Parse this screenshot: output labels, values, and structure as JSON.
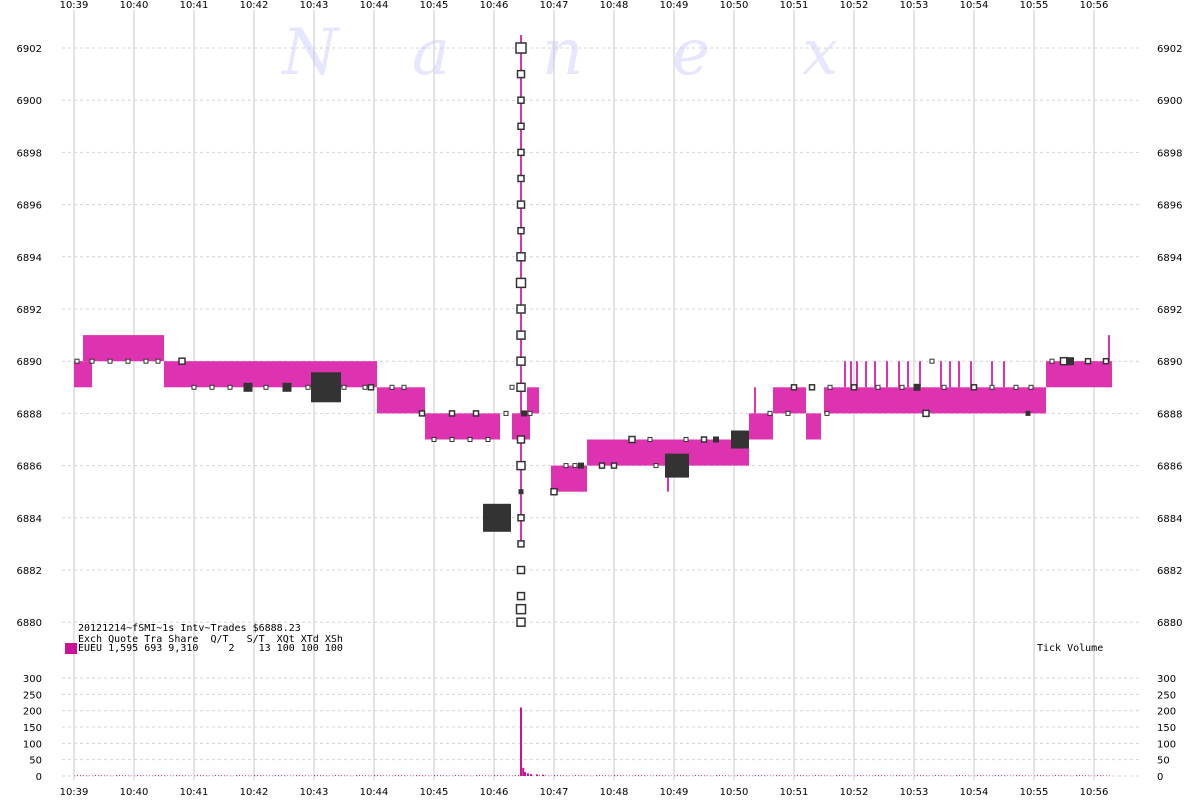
{
  "chart_data": [
    {
      "type": "scatter",
      "title": "20121214~fSMI~1s Intv~Trades $6888.23",
      "watermark": [
        "N",
        "a",
        "n",
        "e",
        "x"
      ],
      "x_tick_labels": [
        "10:39",
        "10:40",
        "10:41",
        "10:42",
        "10:43",
        "10:44",
        "10:45",
        "10:46",
        "10:47",
        "10:48",
        "10:49",
        "10:50",
        "10:51",
        "10:52",
        "10:53",
        "10:54",
        "10:55",
        "10:56"
      ],
      "y_tick_labels": [
        "6880",
        "6882",
        "6884",
        "6886",
        "6888",
        "6890",
        "6892",
        "6894",
        "6896",
        "6898",
        "6900",
        "6902"
      ],
      "ylim": [
        6880,
        6902
      ],
      "grid": true,
      "colors": {
        "quote_band": "#dd33b0",
        "trade_dark": "#333333",
        "trade_outline": "#333333",
        "volume": "#cc1199",
        "grid": "#c8c8c8"
      },
      "quote_bands": [
        {
          "t0": 0.0,
          "t1": 0.3,
          "bid": 6889.0,
          "ask": 6890.0
        },
        {
          "t0": 0.15,
          "t1": 1.5,
          "bid": 6890.0,
          "ask": 6891.0
        },
        {
          "t0": 1.5,
          "t1": 4.6,
          "bid": 6889.0,
          "ask": 6890.0
        },
        {
          "t0": 4.6,
          "t1": 5.05,
          "bid": 6889.0,
          "ask": 6890.0
        },
        {
          "t0": 5.05,
          "t1": 5.85,
          "bid": 6888.0,
          "ask": 6889.0
        },
        {
          "t0": 5.85,
          "t1": 7.1,
          "bid": 6887.0,
          "ask": 6888.0
        },
        {
          "t0": 7.3,
          "t1": 7.6,
          "bid": 6887.0,
          "ask": 6888.0
        },
        {
          "t0": 7.55,
          "t1": 7.75,
          "bid": 6888.0,
          "ask": 6889.0
        },
        {
          "t0": 7.95,
          "t1": 8.55,
          "bid": 6885.0,
          "ask": 6886.0
        },
        {
          "t0": 8.55,
          "t1": 9.2,
          "bid": 6886.0,
          "ask": 6887.0
        },
        {
          "t0": 9.2,
          "t1": 11.25,
          "bid": 6886.0,
          "ask": 6887.0
        },
        {
          "t0": 11.25,
          "t1": 11.65,
          "bid": 6887.0,
          "ask": 6888.0
        },
        {
          "t0": 11.65,
          "t1": 12.2,
          "bid": 6888.0,
          "ask": 6889.0
        },
        {
          "t0": 12.2,
          "t1": 12.45,
          "bid": 6887.0,
          "ask": 6888.0
        },
        {
          "t0": 12.5,
          "t1": 13.5,
          "bid": 6888.0,
          "ask": 6889.0
        },
        {
          "t0": 13.5,
          "t1": 14.85,
          "bid": 6888.0,
          "ask": 6889.0
        },
        {
          "t0": 14.85,
          "t1": 15.55,
          "bid": 6888.0,
          "ask": 6889.0
        },
        {
          "t0": 15.55,
          "t1": 16.2,
          "bid": 6888.0,
          "ask": 6889.0
        },
        {
          "t0": 16.2,
          "t1": 17.3,
          "bid": 6889.0,
          "ask": 6890.0
        }
      ],
      "quote_spikes": [
        {
          "t": 12.85,
          "lo": 6889.0,
          "hi": 6890.0
        },
        {
          "t": 12.95,
          "lo": 6889.0,
          "hi": 6890.0
        },
        {
          "t": 13.05,
          "lo": 6889.0,
          "hi": 6890.0
        },
        {
          "t": 13.2,
          "lo": 6889.0,
          "hi": 6890.0
        },
        {
          "t": 13.35,
          "lo": 6889.0,
          "hi": 6890.0
        },
        {
          "t": 13.55,
          "lo": 6889.0,
          "hi": 6890.0
        },
        {
          "t": 13.75,
          "lo": 6889.0,
          "hi": 6890.0
        },
        {
          "t": 13.9,
          "lo": 6889.0,
          "hi": 6890.0
        },
        {
          "t": 14.1,
          "lo": 6889.0,
          "hi": 6890.0
        },
        {
          "t": 14.45,
          "lo": 6889.0,
          "hi": 6890.0
        },
        {
          "t": 14.6,
          "lo": 6889.0,
          "hi": 6890.0
        },
        {
          "t": 14.75,
          "lo": 6889.0,
          "hi": 6890.0
        },
        {
          "t": 14.95,
          "lo": 6889.0,
          "hi": 6890.0
        },
        {
          "t": 15.3,
          "lo": 6889.0,
          "hi": 6890.0
        },
        {
          "t": 15.5,
          "lo": 6889.0,
          "hi": 6890.0
        },
        {
          "t": 17.25,
          "lo": 6889.0,
          "hi": 6891.0
        },
        {
          "t": 7.45,
          "lo": 6883.0,
          "hi": 6902.5
        },
        {
          "t": 9.9,
          "lo": 6885.0,
          "hi": 6886.0
        },
        {
          "t": 11.35,
          "lo": 6888.0,
          "hi": 6889.0
        },
        {
          "t": 12.35,
          "lo": 6887.0,
          "hi": 6888.0
        }
      ],
      "trades_dark": [
        {
          "t": 7.05,
          "price": 6884.0,
          "size": 28
        },
        {
          "t": 4.2,
          "price": 6889.0,
          "size": 30
        },
        {
          "t": 10.05,
          "price": 6886.0,
          "size": 24
        },
        {
          "t": 11.1,
          "price": 6887.0,
          "size": 18
        },
        {
          "t": 2.9,
          "price": 6889.0,
          "size": 9
        },
        {
          "t": 3.55,
          "price": 6889.0,
          "size": 9
        },
        {
          "t": 7.5,
          "price": 6888.0,
          "size": 6
        },
        {
          "t": 8.45,
          "price": 6886.0,
          "size": 6
        },
        {
          "t": 10.7,
          "price": 6887.0,
          "size": 6
        },
        {
          "t": 16.6,
          "price": 6890.0,
          "size": 8
        },
        {
          "t": 14.05,
          "price": 6889.0,
          "size": 7
        },
        {
          "t": 7.45,
          "price": 6885.0,
          "size": 5
        },
        {
          "t": 15.9,
          "price": 6888.0,
          "size": 5
        }
      ],
      "trades_hollow": [
        {
          "t": 7.45,
          "price": 6902.0,
          "size": 10
        },
        {
          "t": 7.45,
          "price": 6901.0,
          "size": 7
        },
        {
          "t": 7.45,
          "price": 6900.0,
          "size": 6
        },
        {
          "t": 7.45,
          "price": 6899.0,
          "size": 6
        },
        {
          "t": 7.45,
          "price": 6898.0,
          "size": 6
        },
        {
          "t": 7.45,
          "price": 6897.0,
          "size": 6
        },
        {
          "t": 7.45,
          "price": 6896.0,
          "size": 7
        },
        {
          "t": 7.45,
          "price": 6895.0,
          "size": 6
        },
        {
          "t": 7.45,
          "price": 6894.0,
          "size": 8
        },
        {
          "t": 7.45,
          "price": 6893.0,
          "size": 9
        },
        {
          "t": 7.45,
          "price": 6892.0,
          "size": 8
        },
        {
          "t": 7.45,
          "price": 6891.0,
          "size": 8
        },
        {
          "t": 7.45,
          "price": 6890.0,
          "size": 8
        },
        {
          "t": 7.45,
          "price": 6889.0,
          "size": 8
        },
        {
          "t": 7.45,
          "price": 6887.0,
          "size": 7
        },
        {
          "t": 7.45,
          "price": 6886.0,
          "size": 8
        },
        {
          "t": 7.45,
          "price": 6884.0,
          "size": 6
        },
        {
          "t": 7.45,
          "price": 6883.0,
          "size": 6
        },
        {
          "t": 7.45,
          "price": 6882.0,
          "size": 7
        },
        {
          "t": 7.45,
          "price": 6881.0,
          "size": 7
        },
        {
          "t": 7.45,
          "price": 6880.5,
          "size": 9
        },
        {
          "t": 7.45,
          "price": 6880.0,
          "size": 8
        },
        {
          "t": 1.8,
          "price": 6890.0,
          "size": 6
        },
        {
          "t": 4.95,
          "price": 6889.0,
          "size": 5
        },
        {
          "t": 6.3,
          "price": 6888.0,
          "size": 5
        },
        {
          "t": 6.7,
          "price": 6888.0,
          "size": 5
        },
        {
          "t": 5.8,
          "price": 6888.0,
          "size": 5
        },
        {
          "t": 8.0,
          "price": 6885.0,
          "size": 6
        },
        {
          "t": 8.8,
          "price": 6886.0,
          "size": 5
        },
        {
          "t": 9.0,
          "price": 6886.0,
          "size": 5
        },
        {
          "t": 9.3,
          "price": 6887.0,
          "size": 6
        },
        {
          "t": 10.5,
          "price": 6887.0,
          "size": 5
        },
        {
          "t": 12.0,
          "price": 6889.0,
          "size": 5
        },
        {
          "t": 12.3,
          "price": 6889.0,
          "size": 5
        },
        {
          "t": 13.0,
          "price": 6889.0,
          "size": 5
        },
        {
          "t": 14.2,
          "price": 6888.0,
          "size": 6
        },
        {
          "t": 15.0,
          "price": 6889.0,
          "size": 5
        },
        {
          "t": 16.5,
          "price": 6890.0,
          "size": 7
        },
        {
          "t": 16.9,
          "price": 6890.0,
          "size": 5
        },
        {
          "t": 17.2,
          "price": 6890.0,
          "size": 5
        }
      ],
      "trades_small": [
        {
          "t": 0.05,
          "price": 6890.0
        },
        {
          "t": 0.3,
          "price": 6890.0
        },
        {
          "t": 0.6,
          "price": 6890.0
        },
        {
          "t": 0.9,
          "price": 6890.0
        },
        {
          "t": 1.2,
          "price": 6890.0
        },
        {
          "t": 1.4,
          "price": 6890.0
        },
        {
          "t": 2.0,
          "price": 6889.0
        },
        {
          "t": 2.3,
          "price": 6889.0
        },
        {
          "t": 2.6,
          "price": 6889.0
        },
        {
          "t": 3.2,
          "price": 6889.0
        },
        {
          "t": 3.9,
          "price": 6889.0
        },
        {
          "t": 4.5,
          "price": 6889.0
        },
        {
          "t": 5.3,
          "price": 6889.0
        },
        {
          "t": 5.5,
          "price": 6889.0
        },
        {
          "t": 6.0,
          "price": 6887.0
        },
        {
          "t": 6.3,
          "price": 6887.0
        },
        {
          "t": 6.6,
          "price": 6887.0
        },
        {
          "t": 6.9,
          "price": 6887.0
        },
        {
          "t": 7.2,
          "price": 6888.0
        },
        {
          "t": 7.3,
          "price": 6889.0
        },
        {
          "t": 7.6,
          "price": 6888.0
        },
        {
          "t": 8.2,
          "price": 6886.0
        },
        {
          "t": 8.35,
          "price": 6886.0
        },
        {
          "t": 9.7,
          "price": 6886.0
        },
        {
          "t": 9.6,
          "price": 6887.0
        },
        {
          "t": 10.2,
          "price": 6887.0
        },
        {
          "t": 11.6,
          "price": 6888.0
        },
        {
          "t": 11.9,
          "price": 6888.0
        },
        {
          "t": 12.6,
          "price": 6889.0
        },
        {
          "t": 13.4,
          "price": 6889.0
        },
        {
          "t": 13.8,
          "price": 6889.0
        },
        {
          "t": 14.5,
          "price": 6889.0
        },
        {
          "t": 15.3,
          "price": 6889.0
        },
        {
          "t": 15.7,
          "price": 6889.0
        },
        {
          "t": 16.3,
          "price": 6890.0
        },
        {
          "t": 4.85,
          "price": 6889.0
        },
        {
          "t": 12.55,
          "price": 6888.0
        },
        {
          "t": 15.95,
          "price": 6889.0
        },
        {
          "t": 14.3,
          "price": 6890.0
        }
      ],
      "info_line1": "20121214~fSMI~1s Intv~Trades $6888.23",
      "info_header": "Exch Quote Tra Share  Q/T   S/T  XQt XTd XSh",
      "info_row": "EUEU 1,595 693 9,310     2    13 100 100 100",
      "info_swatch_color": "#cc1199"
    },
    {
      "type": "bar",
      "title": "Tick Volume",
      "y_tick_labels": [
        "0",
        "50",
        "100",
        "150",
        "200",
        "250",
        "300"
      ],
      "ylim": [
        0,
        300
      ],
      "color": "#cc1199",
      "spike": {
        "t": 7.45,
        "value": 210
      },
      "spike_secondary": [
        {
          "t": 7.47,
          "value": 25
        },
        {
          "t": 7.5,
          "value": 12
        },
        {
          "t": 7.55,
          "value": 8
        },
        {
          "t": 7.6,
          "value": 6
        },
        {
          "t": 7.7,
          "value": 5
        },
        {
          "t": 7.8,
          "value": 4
        }
      ],
      "baseline_level": 2
    }
  ]
}
